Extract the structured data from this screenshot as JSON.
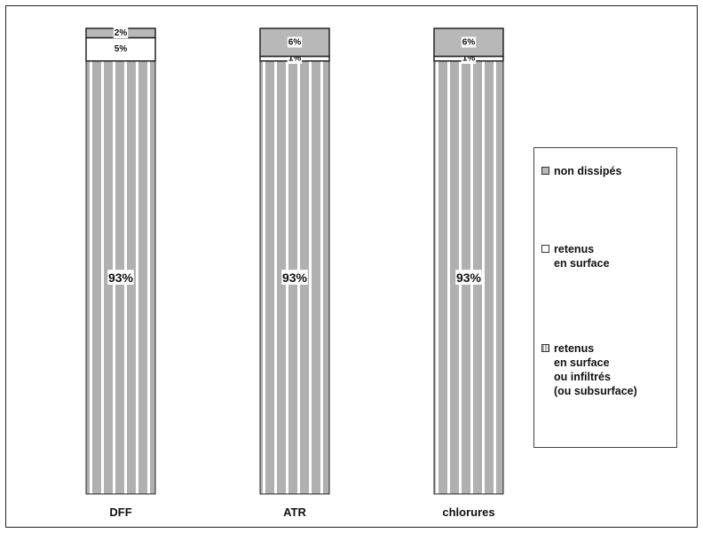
{
  "chart_data": {
    "type": "bar",
    "stacked": true,
    "categories": [
      "DFF",
      "ATR",
      "chlorures"
    ],
    "series": [
      {
        "name": "retenus en surface ou infiltrés (ou subsurface)",
        "values": [
          93,
          93,
          93
        ],
        "color": "#b0b0b0",
        "pattern": "striped"
      },
      {
        "name": "retenus en surface",
        "values": [
          5,
          1,
          1
        ],
        "color": "#ffffff"
      },
      {
        "name": "non dissipés",
        "values": [
          2,
          6,
          6
        ],
        "color": "#b8b8b8"
      }
    ],
    "data_labels": [
      [
        "93%",
        "5%",
        "2%"
      ],
      [
        "93%",
        "1%",
        "6%"
      ],
      [
        "93%",
        "1%",
        "6%"
      ]
    ],
    "ylim": [
      0,
      100
    ],
    "grid": false,
    "legend_position": "right"
  },
  "legend": {
    "items": [
      {
        "text": "non dissipés",
        "swatch": "gray"
      },
      {
        "text": "retenus\nen surface",
        "swatch": "white"
      },
      {
        "text": "retenus\nen surface\nou infiltrés\n(ou subsurface)",
        "swatch": "striped"
      }
    ]
  }
}
